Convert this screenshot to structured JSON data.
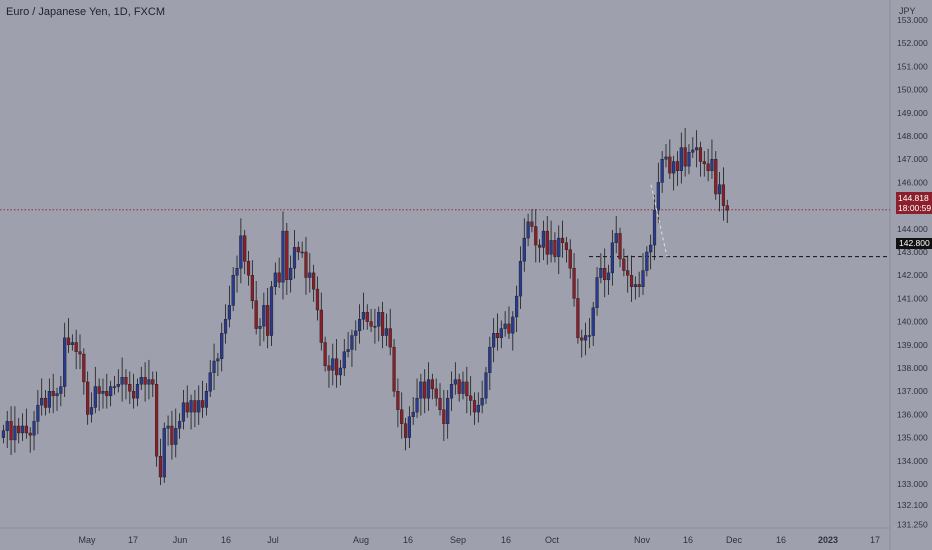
{
  "header": {
    "title": "Euro / Japanese Yen, 1D, FXCM"
  },
  "price_axis": {
    "unit": "JPY"
  },
  "current_price": {
    "value": "144.818",
    "countdown": "18:00:59",
    "color": "#8b1f2c"
  },
  "target_level": {
    "value": "142.800"
  },
  "colors": {
    "up": "#2a3a8f",
    "down": "#8a1f29",
    "background": "#9ea1ad",
    "grid": "#a5a8b3"
  },
  "chart_data": {
    "type": "candlestick",
    "title": "Euro / Japanese Yen, 1D, FXCM",
    "ylabel": "JPY",
    "ylim": [
      131.0,
      153.5
    ],
    "y_ticks": [
      "153.000",
      "152.000",
      "151.000",
      "150.000",
      "149.000",
      "148.000",
      "147.000",
      "146.000",
      "145.000",
      "144.000",
      "143.000",
      "142.000",
      "141.000",
      "140.000",
      "139.000",
      "138.000",
      "137.000",
      "136.000",
      "135.000",
      "134.000",
      "133.000",
      "132.100",
      "131.250"
    ],
    "x_labels": [
      "May",
      "17",
      "Jun",
      "16",
      "Jul",
      "Aug",
      "16",
      "Sep",
      "16",
      "Oct",
      "Nov",
      "16",
      "Dec",
      "16",
      "2023",
      "17"
    ],
    "grid": false,
    "horizontal_lines": [
      {
        "value": 144.818,
        "style": "dotted",
        "color": "#8b1f2c"
      },
      {
        "value": 142.8,
        "style": "dashed",
        "color": "#111111"
      }
    ],
    "projection": {
      "from": 145.9,
      "to": 142.8,
      "style": "dashed",
      "color": "#e0e0e0"
    },
    "series": [
      {
        "name": "",
        "closes": [
          135.3,
          135.7,
          134.9,
          135.5,
          135.2,
          135.5,
          135.2,
          135.1,
          135.7,
          136.4,
          136.7,
          136.3,
          137.0,
          136.8,
          136.9,
          137.2,
          139.3,
          139.0,
          139.1,
          138.7,
          138.6,
          137.4,
          136.0,
          136.3,
          137.2,
          136.9,
          137.0,
          136.8,
          137.2,
          137.2,
          137.3,
          137.6,
          137.3,
          137.0,
          136.7,
          137.3,
          137.6,
          137.3,
          137.5,
          137.3,
          134.2,
          133.3,
          135.4,
          135.5,
          134.7,
          135.4,
          135.7,
          136.5,
          136.1,
          136.6,
          136.1,
          136.6,
          136.3,
          137.0,
          137.8,
          138.3,
          138.4,
          139.5,
          140.1,
          140.7,
          142.0,
          142.3,
          143.7,
          142.6,
          142.0,
          140.9,
          139.7,
          139.8,
          140.7,
          139.4,
          141.5,
          142.1,
          141.7,
          143.9,
          141.8,
          142.3,
          143.2,
          143.0,
          143.0,
          141.9,
          142.1,
          141.4,
          140.5,
          139.1,
          138.1,
          137.9,
          138.4,
          137.7,
          138.0,
          138.7,
          138.8,
          139.4,
          139.6,
          140.1,
          140.4,
          140.0,
          139.8,
          139.8,
          140.4,
          139.4,
          139.7,
          138.9,
          137.0,
          136.2,
          135.6,
          135.0,
          135.9,
          136.1,
          136.7,
          137.4,
          136.7,
          137.5,
          137.1,
          136.7,
          136.2,
          135.6,
          136.7,
          137.3,
          137.5,
          136.9,
          137.4,
          136.8,
          136.6,
          136.1,
          136.4,
          136.7,
          137.8,
          138.9,
          139.5,
          139.3,
          139.7,
          139.9,
          139.5,
          140.2,
          141.1,
          142.6,
          143.6,
          144.3,
          144.1,
          143.3,
          143.2,
          143.9,
          142.9,
          143.5,
          142.8,
          143.6,
          143.4,
          143.1,
          142.3,
          141.0,
          139.3,
          139.2,
          139.4,
          139.4,
          140.6,
          141.9,
          142.3,
          141.8,
          142.1,
          143.4,
          143.8,
          142.7,
          142.2,
          142.0,
          141.5,
          141.6,
          141.5,
          142.2,
          143.0,
          143.3,
          144.8,
          146.0,
          147.0,
          147.1,
          146.4,
          146.9,
          146.5,
          147.5,
          146.7,
          147.3,
          147.4,
          147.5,
          146.9,
          146.8,
          146.5,
          147.0,
          145.5,
          145.9,
          145.0,
          144.8
        ]
      }
    ]
  }
}
